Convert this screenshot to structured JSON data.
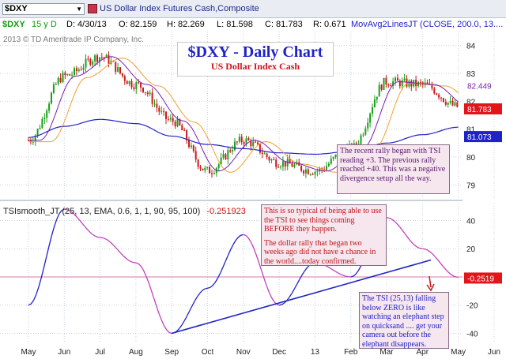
{
  "toolbar": {
    "symbol": "$DXY",
    "title": "US Dollar Index Futures Cash,Composite"
  },
  "infobar": {
    "sym": "$DXY",
    "period": "15 y D",
    "date": "D: 4/30/13",
    "open": "O: 82.159",
    "high": "H: 82.269",
    "low": "L: 81.598",
    "close": "C: 81.783",
    "range": "R: 0.671",
    "study": "MovAvg2LinesJT (CLOSE, 200.0, 13...."
  },
  "copyright": "2013 © TD Ameritrade IP Company, Inc.",
  "title_box": {
    "title": "$DXY - Daily Chart",
    "subtitle": "US Dollar Index Cash"
  },
  "notes": {
    "note1": "The recent rally began with TSI reading +3. The previous rally reached +40.  This was a negative divergence setup all the way.",
    "note2a": "This is so typical of being able to use the TSI to see things coming BEFORE they happen.",
    "note2b": "The dollar rally that began two weeks ago did not have a chance in the world....today confirmed.",
    "note3": "The TSI (25,13) falling below ZERO is like watching an elephant step on quicksand .... get your camera out before the elephant disappears."
  },
  "tsi_label": {
    "name": "TSIsmooth_JT (25, 13, EMA, 0.6, 1, 1, 90, 95, 100)",
    "value": "-0.251923"
  },
  "price_labels": {
    "ma_short": "82.449",
    "close": "81.783",
    "ma_long": "81.073",
    "tsi": "-0.2519"
  },
  "colors": {
    "up_candle": "#18a018",
    "down_candle": "#d01818",
    "ma_short": "#7a1fb0",
    "ma_mid": "#f0a030",
    "ma_long": "#2222c8",
    "trend_line": "#1f22c9",
    "tsi_line": "#1f22c9"
  },
  "chart_data": [
    {
      "type": "candlestick",
      "title": "$DXY - Daily Chart",
      "subtitle": "US Dollar Index Cash",
      "x_ticks": [
        "May",
        "Jun",
        "Jul",
        "Aug",
        "Sep",
        "Oct",
        "Nov",
        "Dec",
        "13",
        "Feb",
        "Mar",
        "Apr",
        "May",
        "Jun"
      ],
      "y_ticks": [
        79,
        80,
        81,
        82,
        83,
        84
      ],
      "ylim": [
        78.5,
        84.5
      ],
      "grid": true,
      "series": [
        {
          "x": [
            "May",
            "Jun",
            "Jul",
            "Aug",
            "Sep",
            "Oct",
            "Nov",
            "Dec",
            "13",
            "Feb",
            "Mar",
            "Apr",
            "May"
          ],
          "values": [
            80.6,
            82.9,
            83.6,
            82.6,
            81.3,
            79.5,
            80.6,
            79.8,
            79.5,
            80.3,
            82.7,
            82.6,
            81.8
          ]
        },
        {
          "name": "MovAvg2LinesJT (CLOSE, 200.0, 13....",
          "x": [
            "May",
            "Jun",
            "Jul",
            "Aug",
            "Sep",
            "Oct",
            "Nov",
            "Dec",
            "13",
            "Feb",
            "Mar",
            "Apr",
            "May"
          ],
          "values": [
            80.7,
            81.1,
            81.35,
            81.2,
            80.75,
            80.45,
            80.3,
            80.15,
            80.1,
            80.2,
            80.5,
            80.8,
            81.07
          ]
        }
      ],
      "last_values": {
        "ma_short": 82.449,
        "close": 81.783,
        "ma_long": 81.073
      }
    },
    {
      "type": "line",
      "title": "TSIsmooth_JT (25, 13, EMA, 0.6, 1, 1, 90, 95, 100)",
      "x_ticks": [
        "May",
        "Jun",
        "Jul",
        "Aug",
        "Sep",
        "Oct",
        "Nov",
        "Dec",
        "13",
        "Feb",
        "Mar",
        "Apr",
        "May",
        "Jun"
      ],
      "y_ticks": [
        -40,
        -20,
        0,
        20,
        40
      ],
      "ylim": [
        -47,
        52
      ],
      "series": [
        {
          "name": "TSIsmooth_JT",
          "x": [
            "May",
            "Jun",
            "Jul",
            "Aug",
            "Sep",
            "Oct",
            "Nov",
            "Dec",
            "13",
            "Feb",
            "Mar",
            "Apr",
            "May"
          ],
          "values": [
            -20,
            48,
            28,
            10,
            -40,
            -8,
            30,
            -20,
            10,
            0,
            42,
            20,
            -0.2519
          ]
        }
      ],
      "last_value": -0.251923
    }
  ]
}
